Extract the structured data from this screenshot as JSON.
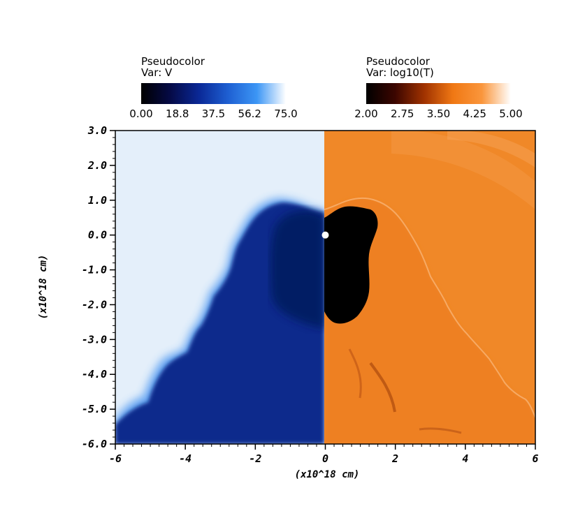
{
  "chart_data": {
    "type": "heatmap",
    "title": "",
    "xlabel": "(x10^18 cm)",
    "ylabel": "(x10^18 cm)",
    "xlim": [
      -6,
      6
    ],
    "ylim": [
      -6,
      3
    ],
    "x_ticks": [
      "-6",
      "-4",
      "-2",
      "0",
      "2",
      "4",
      "6"
    ],
    "x_tick_values": [
      -6,
      -4,
      -2,
      0,
      2,
      4,
      6
    ],
    "y_ticks": [
      "3.0",
      "2.0",
      "1.0",
      "0.0",
      "-1.0",
      "-2.0",
      "-3.0",
      "-4.0",
      "-5.0",
      "-6.0"
    ],
    "y_tick_values": [
      3,
      2,
      1,
      0,
      -1,
      -2,
      -3,
      -4,
      -5,
      -6
    ],
    "source_marker": {
      "x": 0,
      "y": 0
    },
    "panels": [
      {
        "side": "left",
        "legend_title_1": "Pseudocolor",
        "legend_title_2": "Var: V",
        "range": [
          0,
          75
        ],
        "colorbar_ticks": [
          "0.00",
          "18.8",
          "37.5",
          "56.2",
          "75.0"
        ],
        "colormap": [
          "#000000",
          "#050a46",
          "#0a2896",
          "#1e5fd2",
          "#3c96f5",
          "#ffffff"
        ],
        "background_color": "#e4effa",
        "bubble_fill": "#0b2a8c",
        "core_fill": "#051a60"
      },
      {
        "side": "right",
        "legend_title_1": "Pseudocolor",
        "legend_title_2": "Var: log10(T)",
        "range": [
          2,
          5
        ],
        "colorbar_ticks": [
          "2.00",
          "2.75",
          "3.50",
          "4.25",
          "5.00"
        ],
        "colormap": [
          "#000000",
          "#3c0600",
          "#a03200",
          "#f07814",
          "#fa963c",
          "#ffffff"
        ],
        "background_color": "#f08828",
        "bubble_fill": "#ee8020",
        "core_fill": "#000000"
      }
    ]
  }
}
